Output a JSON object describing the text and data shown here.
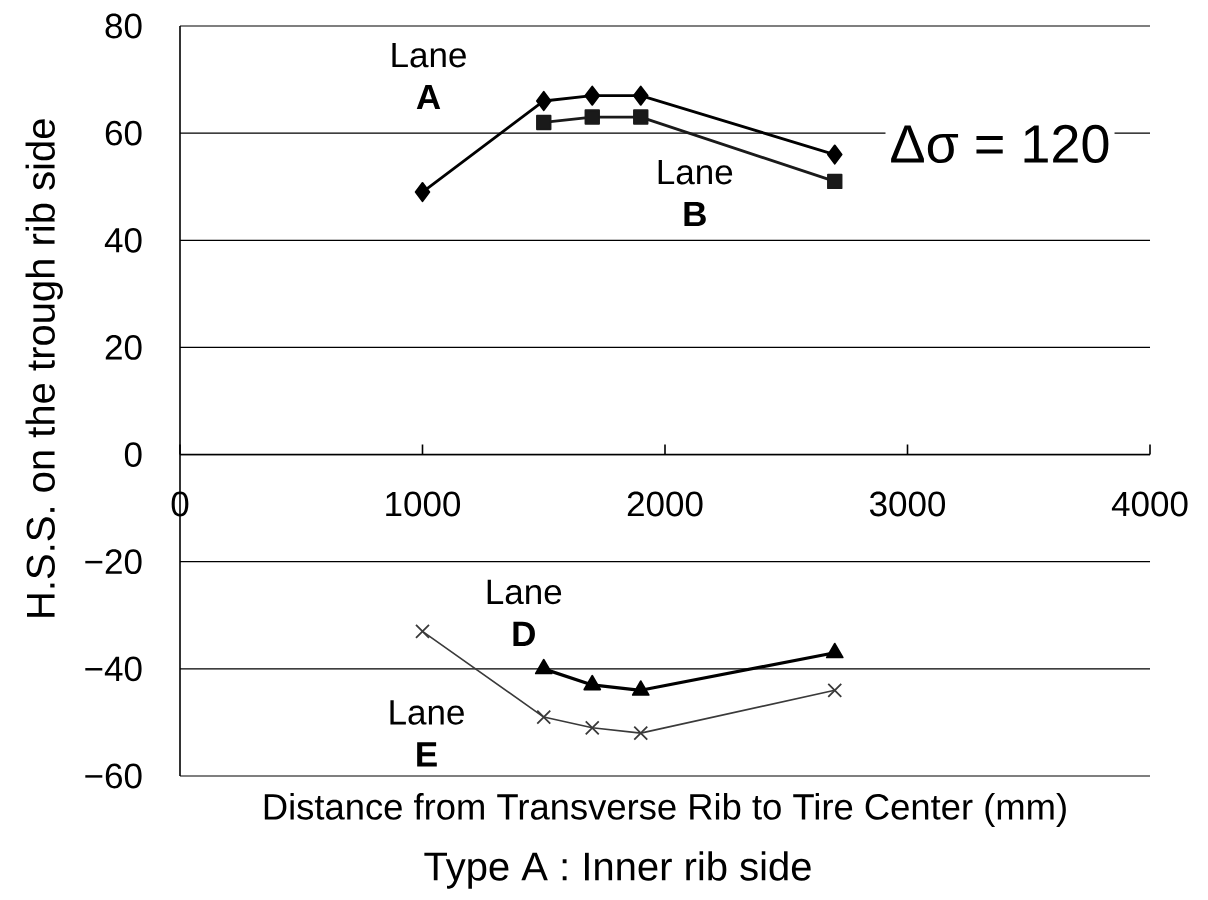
{
  "chart_data": {
    "type": "line",
    "xlabel": "Distance from Transverse Rib to Tire Center (mm)",
    "ylabel": "H.S.S. on the trough rib side",
    "annotations": [
      "Δσ = 120",
      "Type A : Inner rib side"
    ],
    "xlim": [
      0,
      4000
    ],
    "xticks": [
      0,
      1000,
      2000,
      3000,
      4000
    ],
    "ylim": [
      -60,
      80
    ],
    "yticks": [
      {
        "value": -60,
        "label": "−60"
      },
      {
        "value": -40,
        "label": "−40"
      },
      {
        "value": -20,
        "label": "−20"
      },
      0,
      20,
      40,
      60,
      80
    ],
    "grid": "y",
    "line_style": "solid",
    "series": [
      {
        "name": "Lane **A**",
        "color": "#000000",
        "marker": "diamond",
        "x": [
          1000,
          1500,
          1700,
          1900,
          2700
        ],
        "values": [
          49,
          66,
          67,
          67,
          56
        ]
      },
      {
        "name": "Lane **B**",
        "color": "#1a1a1a",
        "marker": "square",
        "x": [
          1500,
          1700,
          1900,
          2700
        ],
        "values": [
          62,
          63,
          63,
          51
        ]
      },
      {
        "name": "Lane **D**",
        "color": "#000000",
        "marker": "triangle",
        "x": [
          1500,
          1700,
          1900,
          2700
        ],
        "values": [
          -40,
          -43,
          -44,
          -37
        ]
      },
      {
        "name": "Lane **E**",
        "color": "#3a3a3a",
        "marker": "cross",
        "x": [
          1000,
          1500,
          1700,
          1900,
          2700
        ],
        "values": [
          -33,
          -49,
          -51,
          -52,
          -44
        ]
      }
    ]
  }
}
